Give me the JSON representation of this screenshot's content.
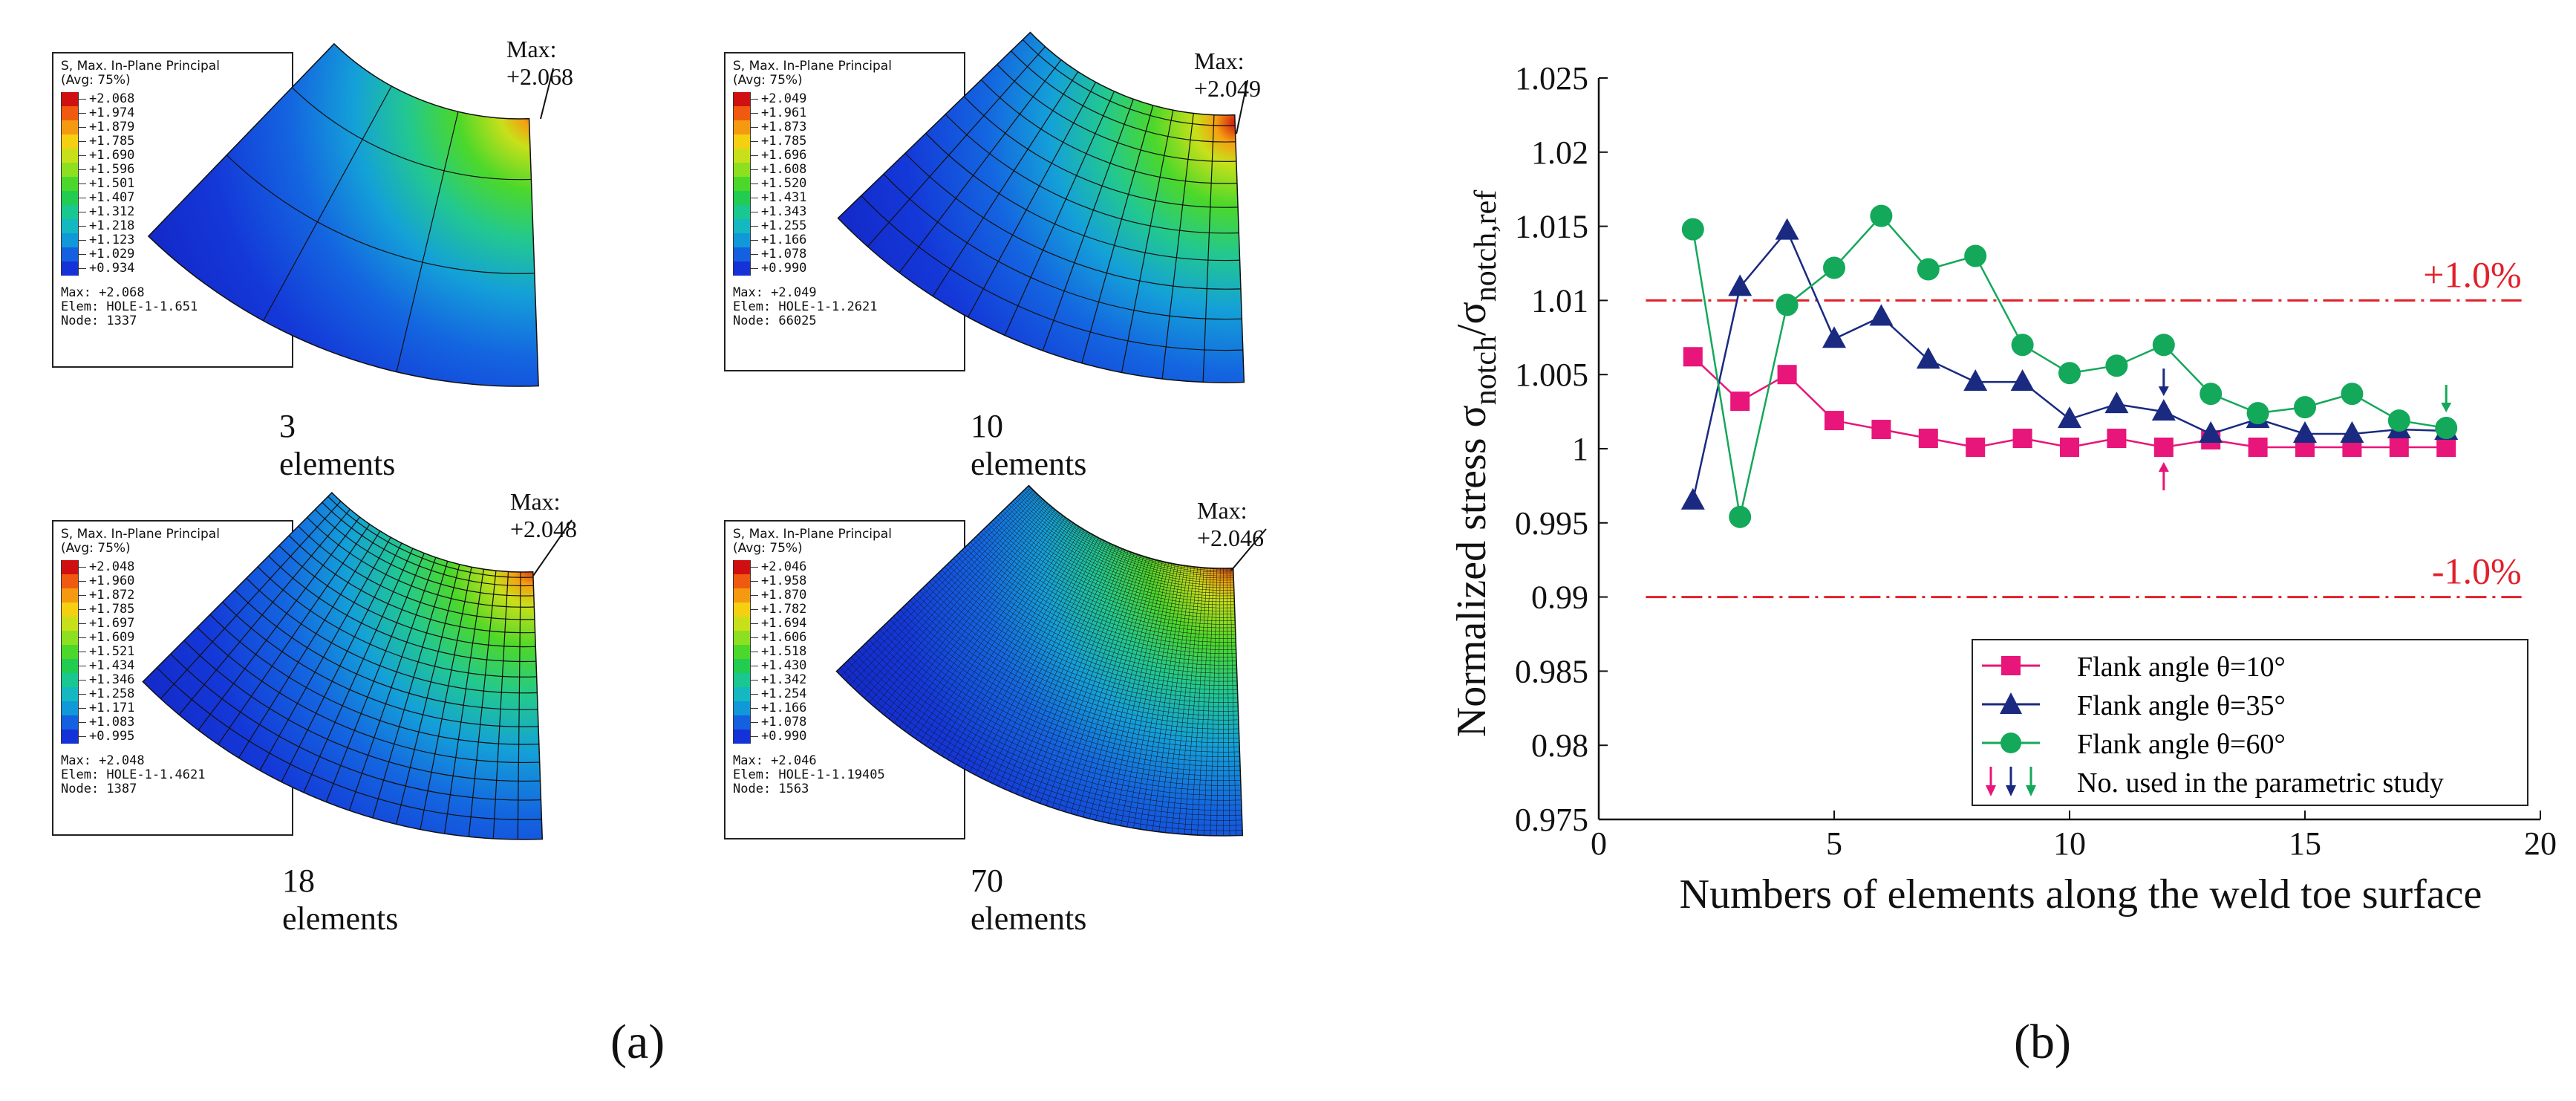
{
  "panel_a": {
    "label": "(a)",
    "legend_title": "S, Max. In-Plane Principal",
    "legend_avg": "(Avg: 75%)",
    "colors": [
      "#d01010",
      "#f05a10",
      "#f59a10",
      "#f5d010",
      "#c8e01a",
      "#8ce020",
      "#4cd82a",
      "#22cc50",
      "#18c890",
      "#14b8c0",
      "#1098d8",
      "#1460e0",
      "#1432d8"
    ],
    "meshes": [
      {
        "caption": "3 elements",
        "max_label": "Max: +2.068",
        "legend_values": [
          "+2.068",
          "+1.974",
          "+1.879",
          "+1.785",
          "+1.690",
          "+1.596",
          "+1.501",
          "+1.407",
          "+1.312",
          "+1.218",
          "+1.123",
          "+1.029",
          "+0.934"
        ],
        "info_max": "Max: +2.068",
        "info_elem": "Elem: HOLE-1-1.651",
        "info_node": "Node: 1337"
      },
      {
        "caption": "10 elements",
        "max_label": "Max: +2.049",
        "legend_values": [
          "+2.049",
          "+1.961",
          "+1.873",
          "+1.785",
          "+1.696",
          "+1.608",
          "+1.520",
          "+1.431",
          "+1.343",
          "+1.255",
          "+1.166",
          "+1.078",
          "+0.990"
        ],
        "info_max": "Max: +2.049",
        "info_elem": "Elem: HOLE-1-1.2621",
        "info_node": "Node: 66025"
      },
      {
        "caption": "18 elements",
        "max_label": "Max: +2.048",
        "legend_values": [
          "+2.048",
          "+1.960",
          "+1.872",
          "+1.785",
          "+1.697",
          "+1.609",
          "+1.521",
          "+1.434",
          "+1.346",
          "+1.258",
          "+1.171",
          "+1.083",
          "+0.995"
        ],
        "info_max": "Max: +2.048",
        "info_elem": "Elem: HOLE-1-1.4621",
        "info_node": "Node: 1387"
      },
      {
        "caption": "70 elements",
        "max_label": "Max: +2.046",
        "legend_values": [
          "+2.046",
          "+1.958",
          "+1.870",
          "+1.782",
          "+1.694",
          "+1.606",
          "+1.518",
          "+1.430",
          "+1.342",
          "+1.254",
          "+1.166",
          "+1.078",
          "+0.990"
        ],
        "info_max": "Max: +2.046",
        "info_elem": "Elem: HOLE-1-1.19405",
        "info_node": "Node: 1563"
      }
    ]
  },
  "panel_b": {
    "label": "(b)",
    "ref_upper_label": "+1.0%",
    "ref_lower_label": "-1.0%",
    "arrow_label": "No. used in the parametric study"
  },
  "chart_data": {
    "type": "line",
    "title": "",
    "xlabel": "Numbers of elements along the weld toe surface",
    "ylabel_main": "Normalized  stress σ",
    "ylabel_sub1": "notch",
    "ylabel_mid": "/σ",
    "ylabel_sub2": "notch,ref",
    "xlim": [
      0,
      20
    ],
    "ylim": [
      0.975,
      1.025
    ],
    "xticks": [
      0,
      5,
      10,
      15,
      20
    ],
    "yticks": [
      0.975,
      0.98,
      0.985,
      0.99,
      0.995,
      1,
      1.005,
      1.01,
      1.015,
      1.02,
      1.025
    ],
    "ytick_labels": [
      "0.975",
      "0.98",
      "0.985",
      "0.99",
      "0.995",
      "1",
      "1.005",
      "1.01",
      "1.015",
      "1.02",
      "1.025"
    ],
    "reference_lines": [
      1.01,
      0.99
    ],
    "x": [
      2,
      3,
      4,
      5,
      6,
      7,
      8,
      9,
      10,
      11,
      12,
      13,
      14,
      15,
      16,
      17,
      18
    ],
    "series": [
      {
        "name": "Flank angle θ=10°",
        "color": "#e8157a",
        "marker": "square",
        "values": [
          1.0062,
          1.0032,
          1.005,
          1.0019,
          1.0013,
          1.0007,
          1.0001,
          1.0007,
          1.0001,
          1.0007,
          1.0001,
          1.0006,
          1.0001,
          1.0001,
          1.0001,
          1.0001,
          1.0001
        ],
        "selected_x": 12
      },
      {
        "name": "Flank angle θ=35°",
        "color": "#1a2a80",
        "marker": "triangle",
        "values": [
          0.9965,
          1.0109,
          1.0147,
          1.0074,
          1.0089,
          1.006,
          1.0045,
          1.0045,
          1.002,
          1.003,
          1.0025,
          1.001,
          1.002,
          1.001,
          1.001,
          1.0013,
          1.0012
        ],
        "selected_x": 12
      },
      {
        "name": "Flank angle θ=60°",
        "color": "#14a85a",
        "marker": "circle",
        "values": [
          1.0148,
          0.9954,
          1.0097,
          1.0122,
          1.0157,
          1.0121,
          1.013,
          1.007,
          1.0051,
          1.0056,
          1.007,
          1.0037,
          1.0024,
          1.0028,
          1.0037,
          1.0019,
          1.0014
        ],
        "selected_x": 18
      }
    ],
    "legend_position": "bottom-right"
  }
}
